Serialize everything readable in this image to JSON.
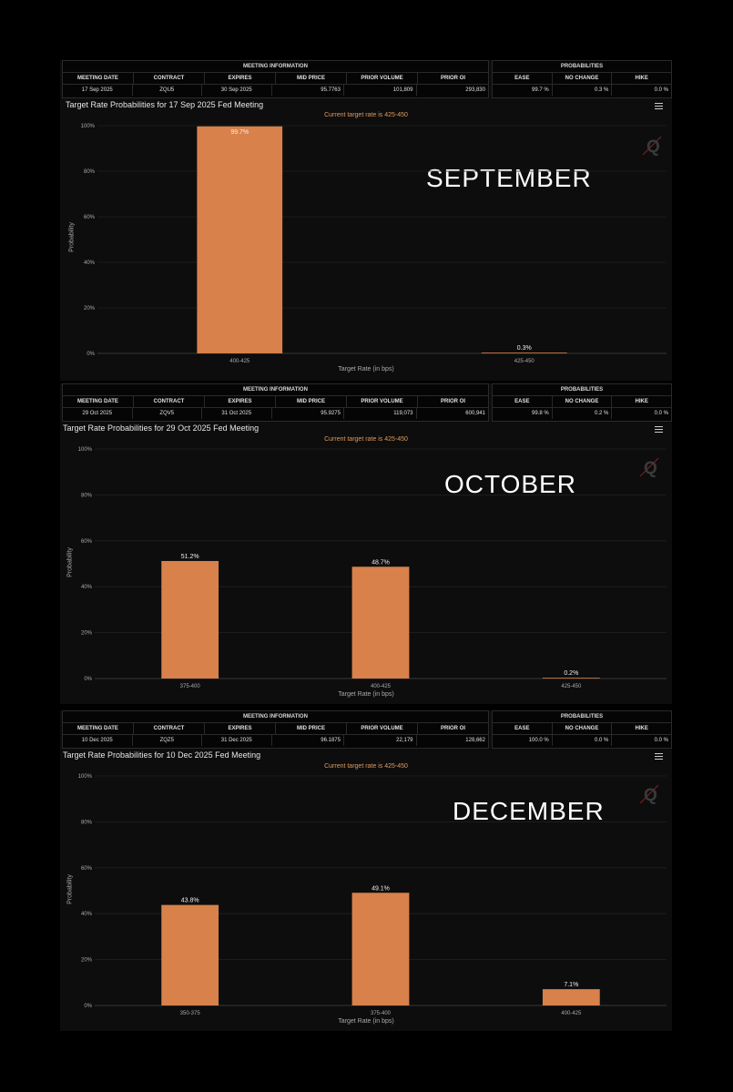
{
  "meeting_info_header": "MEETING INFORMATION",
  "probabilities_header": "PROBABILITIES",
  "meeting_columns": [
    "MEETING DATE",
    "CONTRACT",
    "EXPIRES",
    "MID PRICE",
    "PRIOR VOLUME",
    "PRIOR OI"
  ],
  "probability_columns": [
    "EASE",
    "NO CHANGE",
    "HIKE"
  ],
  "charts": [
    {
      "month_label": "SEPTEMBER",
      "meeting": [
        "17 Sep 2025",
        "ZQU5",
        "30 Sep 2025",
        "95.7763",
        "101,809",
        "293,830"
      ],
      "probabilities": [
        "99.7 %",
        "0.3 %",
        "0.0 %"
      ]
    },
    {
      "month_label": "OCTOBER",
      "meeting": [
        "29 Oct 2025",
        "ZQV5",
        "31 Oct 2025",
        "95.9275",
        "119,073",
        "600,941"
      ],
      "probabilities": [
        "99.8 %",
        "0.2 %",
        "0.0 %"
      ]
    },
    {
      "month_label": "DECEMBER",
      "meeting": [
        "10 Dec 2025",
        "ZQZ5",
        "31 Dec 2025",
        "96.1875",
        "22,179",
        "128,662"
      ],
      "probabilities": [
        "100.0 %",
        "0.0 %",
        "0.0 %"
      ]
    }
  ],
  "colors": {
    "bar": "#d9814a",
    "background": "#0d0d0d",
    "note": "#e09a5c"
  },
  "icons": [
    "menu-icon",
    "quikstrike-logo-icon"
  ],
  "chart_data": [
    {
      "type": "bar",
      "title": "Target Rate Probabilities for 17 Sep 2025 Fed Meeting",
      "subtitle": "Current target rate is 425-450",
      "xlabel": "Target Rate (in bps)",
      "ylabel": "Probability",
      "categories": [
        "400-425",
        "425-450"
      ],
      "values": [
        99.7,
        0.3
      ],
      "data_labels": [
        "99.7%",
        "0.3%"
      ],
      "yticks": [
        "0%",
        "20%",
        "40%",
        "60%",
        "80%",
        "100%"
      ],
      "ylim": [
        0,
        100
      ]
    },
    {
      "type": "bar",
      "title": "Target Rate Probabilities for 29 Oct 2025 Fed Meeting",
      "subtitle": "Current target rate is 425-450",
      "xlabel": "Target Rate (in bps)",
      "ylabel": "Probability",
      "categories": [
        "375-400",
        "400-425",
        "425-450"
      ],
      "values": [
        51.2,
        48.7,
        0.2
      ],
      "data_labels": [
        "51.2%",
        "48.7%",
        "0.2%"
      ],
      "yticks": [
        "0%",
        "20%",
        "40%",
        "60%",
        "80%",
        "100%"
      ],
      "ylim": [
        0,
        100
      ]
    },
    {
      "type": "bar",
      "title": "Target Rate Probabilities for 10 Dec 2025 Fed Meeting",
      "subtitle": "Current target rate is 425-450",
      "xlabel": "Target Rate (in bps)",
      "ylabel": "Probability",
      "categories": [
        "350-375",
        "375-400",
        "400-425"
      ],
      "values": [
        43.8,
        49.1,
        7.1
      ],
      "data_labels": [
        "43.8%",
        "49.1%",
        "7.1%"
      ],
      "yticks": [
        "0%",
        "20%",
        "40%",
        "60%",
        "80%",
        "100%"
      ],
      "ylim": [
        0,
        100
      ]
    }
  ]
}
